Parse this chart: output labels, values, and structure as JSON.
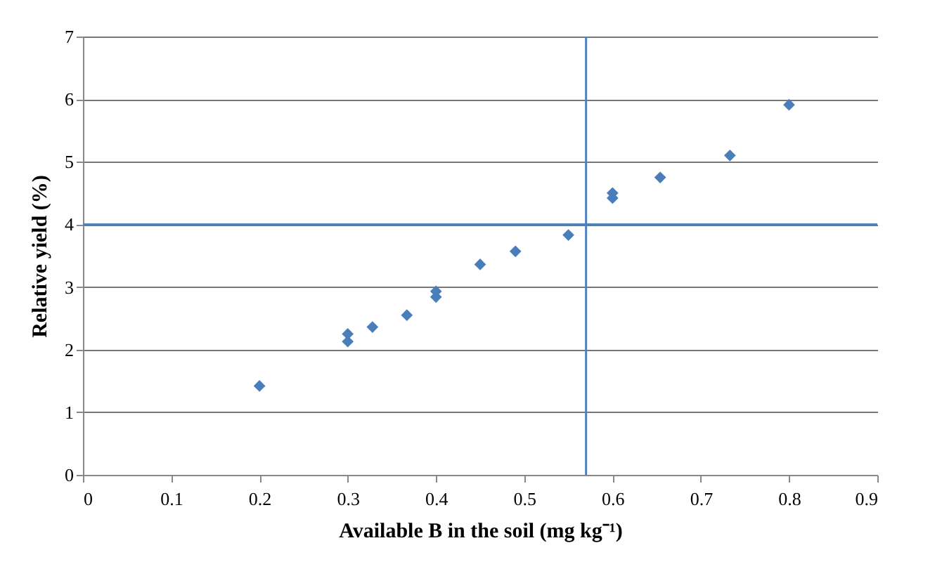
{
  "chart_data": {
    "type": "scatter",
    "xlabel": "Available B in the soil (mg kg⁻¹)",
    "ylabel": "Relative yield  (%)",
    "x": [
      0.2,
      0.3,
      0.3,
      0.328,
      0.367,
      0.4,
      0.4,
      0.45,
      0.49,
      0.55,
      0.6,
      0.6,
      0.654,
      0.733,
      0.8
    ],
    "series": [
      {
        "color": "#4a7ebb",
        "values": [
          1.42,
          2.25,
          2.13,
          2.36,
          2.55,
          2.93,
          2.84,
          3.36,
          3.57,
          3.83,
          4.42,
          4.5,
          4.75,
          5.1,
          5.91
        ]
      }
    ],
    "xlim": [
      0,
      0.9
    ],
    "xticks": [
      0,
      0.1,
      0.2,
      0.3,
      0.4,
      0.5,
      0.6,
      0.7,
      0.8,
      0.9
    ],
    "ylim": [
      0,
      7
    ],
    "yticks": [
      0,
      1,
      2,
      3,
      4,
      5,
      6,
      7
    ],
    "ref_lines": [
      {
        "axis": "y",
        "value": 4,
        "color": "#4f81bd"
      },
      {
        "axis": "x",
        "value": 0.57,
        "color": "#4f81bd"
      }
    ],
    "grid": "y",
    "marker": "diamond"
  }
}
